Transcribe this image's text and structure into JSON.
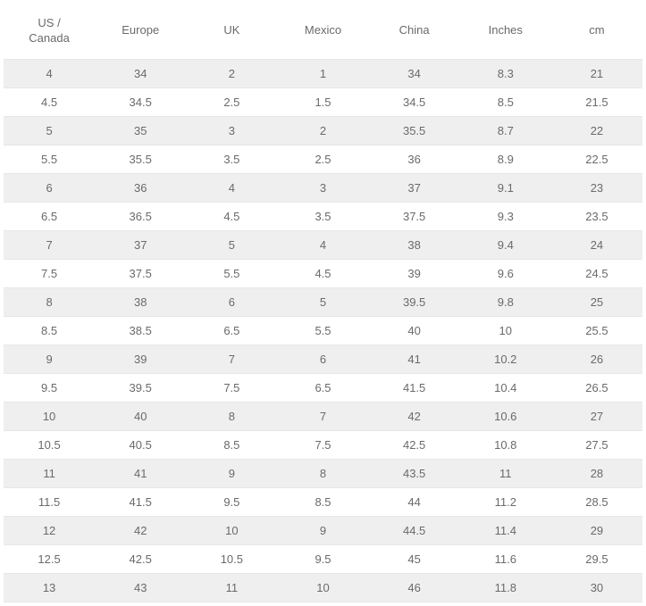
{
  "table": {
    "columns": [
      "US / Canada",
      "Europe",
      "UK",
      "Mexico",
      "China",
      "Inches",
      "cm"
    ],
    "rows": [
      [
        "4",
        "34",
        "2",
        "1",
        "34",
        "8.3",
        "21"
      ],
      [
        "4.5",
        "34.5",
        "2.5",
        "1.5",
        "34.5",
        "8.5",
        "21.5"
      ],
      [
        "5",
        "35",
        "3",
        "2",
        "35.5",
        "8.7",
        "22"
      ],
      [
        "5.5",
        "35.5",
        "3.5",
        "2.5",
        "36",
        "8.9",
        "22.5"
      ],
      [
        "6",
        "36",
        "4",
        "3",
        "37",
        "9.1",
        "23"
      ],
      [
        "6.5",
        "36.5",
        "4.5",
        "3.5",
        "37.5",
        "9.3",
        "23.5"
      ],
      [
        "7",
        "37",
        "5",
        "4",
        "38",
        "9.4",
        "24"
      ],
      [
        "7.5",
        "37.5",
        "5.5",
        "4.5",
        "39",
        "9.6",
        "24.5"
      ],
      [
        "8",
        "38",
        "6",
        "5",
        "39.5",
        "9.8",
        "25"
      ],
      [
        "8.5",
        "38.5",
        "6.5",
        "5.5",
        "40",
        "10",
        "25.5"
      ],
      [
        "9",
        "39",
        "7",
        "6",
        "41",
        "10.2",
        "26"
      ],
      [
        "9.5",
        "39.5",
        "7.5",
        "6.5",
        "41.5",
        "10.4",
        "26.5"
      ],
      [
        "10",
        "40",
        "8",
        "7",
        "42",
        "10.6",
        "27"
      ],
      [
        "10.5",
        "40.5",
        "8.5",
        "7.5",
        "42.5",
        "10.8",
        "27.5"
      ],
      [
        "11",
        "41",
        "9",
        "8",
        "43.5",
        "11",
        "28"
      ],
      [
        "11.5",
        "41.5",
        "9.5",
        "8.5",
        "44",
        "11.2",
        "28.5"
      ],
      [
        "12",
        "42",
        "10",
        "9",
        "44.5",
        "11.4",
        "29"
      ],
      [
        "12.5",
        "42.5",
        "10.5",
        "9.5",
        "45",
        "11.6",
        "29.5"
      ],
      [
        "13",
        "43",
        "11",
        "10",
        "46",
        "11.8",
        "30"
      ]
    ],
    "header_text_color": "#6a6a6a",
    "body_text_color": "#6a6a6a",
    "odd_row_bg": "#efefef",
    "even_row_bg": "#ffffff",
    "border_color": "#e7e7e7",
    "font_size": 13
  }
}
